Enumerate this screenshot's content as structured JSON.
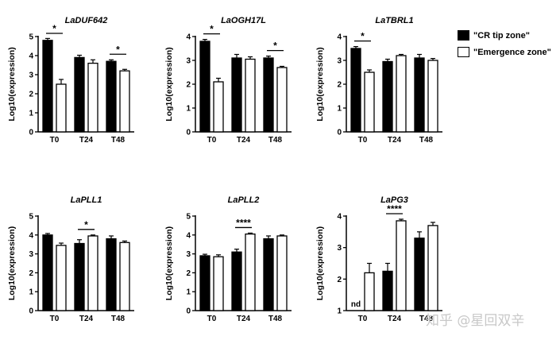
{
  "legend": {
    "items": [
      {
        "label": "\"CR tip zone\"",
        "color": "#000000"
      },
      {
        "label": "\"Emergence zone\"",
        "color": "#ffffff"
      }
    ]
  },
  "watermark": "知乎 @星回双辛",
  "chart_data": [
    {
      "type": "bar",
      "title": "LaDUF642",
      "ylabel": "Log10(expression)",
      "ylim": [
        0,
        5
      ],
      "categories": [
        "T0",
        "T24",
        "T48"
      ],
      "series": [
        {
          "name": "\"CR tip zone\"",
          "values": [
            4.8,
            3.9,
            3.7
          ],
          "errors": [
            0.1,
            0.12,
            0.08
          ]
        },
        {
          "name": "\"Emergence zone\"",
          "values": [
            2.5,
            3.6,
            3.2
          ],
          "errors": [
            0.25,
            0.18,
            0.08
          ]
        }
      ],
      "significance": [
        {
          "category": "T0",
          "label": "*"
        },
        {
          "category": "T48",
          "label": "*"
        }
      ],
      "nd": []
    },
    {
      "type": "bar",
      "title": "LaOGH17L",
      "ylabel": "Log10(expression)",
      "ylim": [
        0,
        4
      ],
      "categories": [
        "T0",
        "T24",
        "T48"
      ],
      "series": [
        {
          "name": "\"CR tip zone\"",
          "values": [
            3.8,
            3.1,
            3.1
          ],
          "errors": [
            0.08,
            0.15,
            0.08
          ]
        },
        {
          "name": "\"Emergence zone\"",
          "values": [
            2.1,
            3.05,
            2.7
          ],
          "errors": [
            0.15,
            0.1,
            0.05
          ]
        }
      ],
      "significance": [
        {
          "category": "T0",
          "label": "*"
        },
        {
          "category": "T48",
          "label": "*"
        }
      ],
      "nd": []
    },
    {
      "type": "bar",
      "title": "LaTBRL1",
      "ylabel": "Log10(expression)",
      "ylim": [
        0,
        4
      ],
      "categories": [
        "T0",
        "T24",
        "T48"
      ],
      "series": [
        {
          "name": "\"CR tip zone\"",
          "values": [
            3.5,
            2.95,
            3.1
          ],
          "errors": [
            0.08,
            0.1,
            0.15
          ]
        },
        {
          "name": "\"Emergence zone\"",
          "values": [
            2.5,
            3.2,
            3.0
          ],
          "errors": [
            0.1,
            0.05,
            0.08
          ]
        }
      ],
      "significance": [
        {
          "category": "T0",
          "label": "*"
        }
      ],
      "nd": []
    },
    {
      "type": "bar",
      "title": "LaPLL1",
      "ylabel": "Log10(expression)",
      "ylim": [
        0,
        5
      ],
      "categories": [
        "T0",
        "T24",
        "T48"
      ],
      "series": [
        {
          "name": "\"CR tip zone\"",
          "values": [
            4.0,
            3.55,
            3.8
          ],
          "errors": [
            0.08,
            0.2,
            0.15
          ]
        },
        {
          "name": "\"Emergence zone\"",
          "values": [
            3.45,
            3.95,
            3.6
          ],
          "errors": [
            0.12,
            0.05,
            0.08
          ]
        }
      ],
      "significance": [
        {
          "category": "T24",
          "label": "*"
        }
      ],
      "nd": []
    },
    {
      "type": "bar",
      "title": "LaPLL2",
      "ylabel": "Log10(expression)",
      "ylim": [
        0,
        5
      ],
      "categories": [
        "T0",
        "T24",
        "T48"
      ],
      "series": [
        {
          "name": "\"CR tip zone\"",
          "values": [
            2.9,
            3.1,
            3.8
          ],
          "errors": [
            0.08,
            0.15,
            0.15
          ]
        },
        {
          "name": "\"Emergence zone\"",
          "values": [
            2.85,
            4.05,
            3.95
          ],
          "errors": [
            0.1,
            0.05,
            0.05
          ]
        }
      ],
      "significance": [
        {
          "category": "T24",
          "label": "****"
        }
      ],
      "nd": []
    },
    {
      "type": "bar",
      "title": "LaPG3",
      "ylabel": "Log10(expression)",
      "ylim": [
        1,
        4
      ],
      "categories": [
        "T0",
        "T24",
        "T48"
      ],
      "series": [
        {
          "name": "\"CR tip zone\"",
          "values": [
            null,
            2.25,
            3.3
          ],
          "errors": [
            0,
            0.25,
            0.2
          ]
        },
        {
          "name": "\"Emergence zone\"",
          "values": [
            2.2,
            3.85,
            3.7
          ],
          "errors": [
            0.3,
            0.05,
            0.1
          ]
        }
      ],
      "significance": [
        {
          "category": "T24",
          "label": "****"
        }
      ],
      "nd": [
        {
          "category": "T0",
          "series": 0,
          "label": "nd"
        }
      ]
    }
  ]
}
